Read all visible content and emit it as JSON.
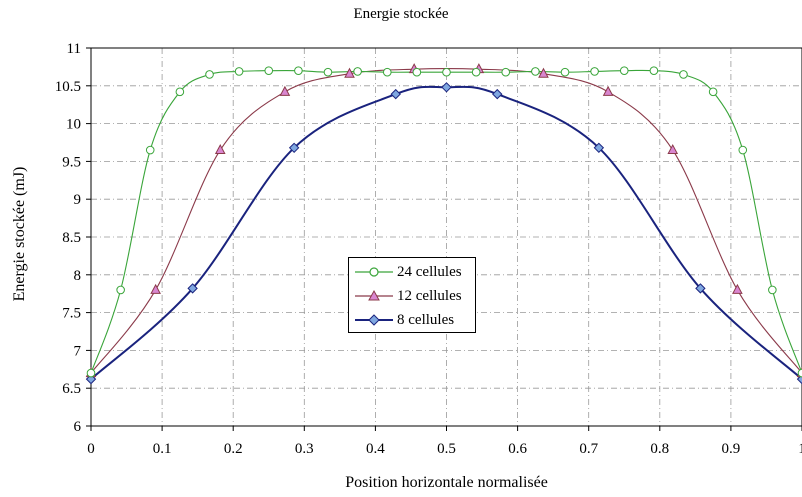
{
  "chart_data": {
    "type": "line",
    "title": "Energie stockée",
    "xlabel": "Position horizontale normalisée",
    "ylabel": "Energie stockée (mJ)",
    "xlim": [
      0,
      1
    ],
    "ylim": [
      6,
      11
    ],
    "xticks": [
      "0",
      "0.1",
      "0.2",
      "0.3",
      "0.4",
      "0.5",
      "0.6",
      "0.7",
      "0.8",
      "0.9",
      "1"
    ],
    "yticks": [
      "6",
      "6.5",
      "7",
      "7.5",
      "8",
      "8.5",
      "9",
      "9.5",
      "10",
      "10.5",
      "11"
    ],
    "grid": true,
    "legend_position": "center",
    "series": [
      {
        "name": "24 cellules",
        "color": "#3aa53a",
        "fill": "#ffffff",
        "marker": "circle",
        "x": [
          0,
          0.0417,
          0.0833,
          0.125,
          0.1667,
          0.2083,
          0.25,
          0.2917,
          0.3333,
          0.375,
          0.4167,
          0.4583,
          0.5,
          0.5417,
          0.5833,
          0.625,
          0.6667,
          0.7083,
          0.75,
          0.7917,
          0.8333,
          0.875,
          0.9167,
          0.9583,
          1
        ],
        "y": [
          6.7,
          7.8,
          9.65,
          10.42,
          10.65,
          10.69,
          10.7,
          10.7,
          10.68,
          10.69,
          10.68,
          10.68,
          10.68,
          10.68,
          10.68,
          10.69,
          10.68,
          10.69,
          10.7,
          10.7,
          10.65,
          10.42,
          9.65,
          7.8,
          6.7
        ]
      },
      {
        "name": "12 cellules",
        "color": "#8b3a4a",
        "fill": "#d986d0",
        "marker": "triangle",
        "x": [
          0,
          0.0909,
          0.1818,
          0.2727,
          0.3636,
          0.4545,
          0.5455,
          0.6364,
          0.7273,
          0.8182,
          0.9091,
          1
        ],
        "y": [
          6.7,
          7.8,
          9.65,
          10.42,
          10.66,
          10.72,
          10.72,
          10.66,
          10.42,
          9.65,
          7.8,
          6.7
        ]
      },
      {
        "name": "8 cellules",
        "color": "#1a237e",
        "fill": "#7fa7e0",
        "marker": "diamond",
        "x": [
          0,
          0.1429,
          0.2857,
          0.4286,
          0.5,
          0.5714,
          0.7143,
          0.8571,
          1
        ],
        "y": [
          6.62,
          7.82,
          9.68,
          10.39,
          10.48,
          10.39,
          9.68,
          7.82,
          6.62
        ]
      }
    ]
  }
}
